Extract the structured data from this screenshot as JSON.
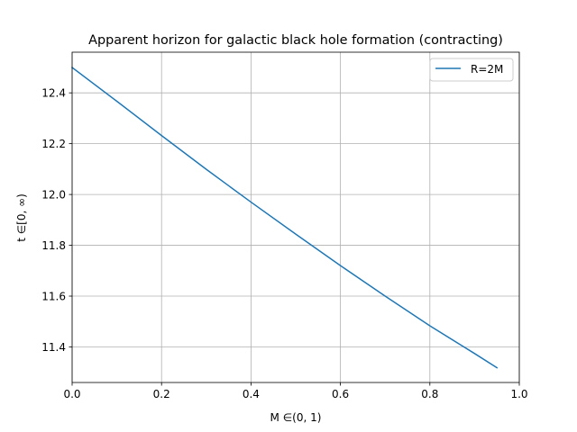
{
  "chart_data": {
    "type": "line",
    "title": "Apparent horizon for galactic black hole formation (contracting)",
    "xlabel": "M ∈(0, 1)",
    "ylabel": "t ∈[0, ∞)",
    "xlim": [
      0.0,
      1.0
    ],
    "ylim": [
      11.26,
      12.56
    ],
    "xticks": [
      0.0,
      0.2,
      0.4,
      0.6,
      0.8,
      1.0
    ],
    "xtick_labels": [
      "0.0",
      "0.2",
      "0.4",
      "0.6",
      "0.8",
      "1.0"
    ],
    "yticks": [
      11.4,
      11.6,
      11.8,
      12.0,
      12.2,
      12.4
    ],
    "ytick_labels": [
      "11.4",
      "11.6",
      "11.8",
      "12.0",
      "12.2",
      "12.4"
    ],
    "grid": true,
    "legend_position": "top-right",
    "series": [
      {
        "name": "R=2M",
        "color": "#1f77b4",
        "x": [
          0.0,
          0.1,
          0.2,
          0.3,
          0.4,
          0.5,
          0.6,
          0.7,
          0.8,
          0.9,
          0.95
        ],
        "y": [
          12.5,
          12.367,
          12.232,
          12.099,
          11.97,
          11.844,
          11.72,
          11.6,
          11.483,
          11.374,
          11.318
        ]
      }
    ]
  }
}
